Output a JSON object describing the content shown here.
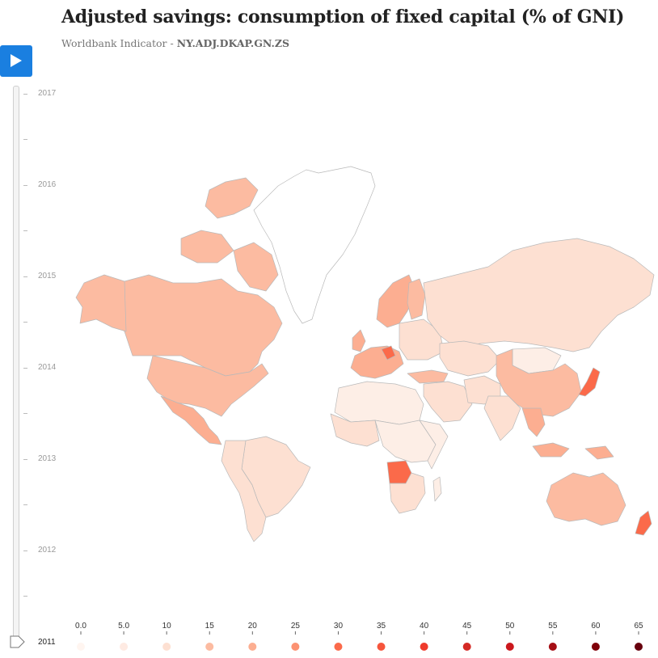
{
  "title": "Adjusted savings: consumption of fixed capital (% of GNI)",
  "subtitle_prefix": "Worldbank Indicator - ",
  "subtitle_code": "NY.ADJ.DKAP.GN.ZS",
  "timeline": {
    "years": [
      "2017",
      "2016",
      "2015",
      "2014",
      "2013",
      "2012"
    ],
    "current_year": "2011"
  },
  "legend": {
    "labels": [
      "0.0",
      "5.0",
      "10",
      "15",
      "20",
      "25",
      "30",
      "35",
      "40",
      "45",
      "50",
      "55",
      "60",
      "65"
    ],
    "colors": [
      "#fff5f0",
      "#feeae2",
      "#fde0d2",
      "#fcbba1",
      "#fcae91",
      "#fc9272",
      "#fb6a4a",
      "#f6553c",
      "#ef3b2c",
      "#d42a25",
      "#cb181d",
      "#a50f15",
      "#7f0009",
      "#67000d"
    ]
  },
  "map_colors": {
    "none": "#ffffff",
    "light": "#fde0d2",
    "lighter": "#fdeee6",
    "mid": "#fcbba1",
    "midDark": "#fcae91",
    "strong": "#fb6a4a",
    "border": "#b9b9b9"
  }
}
